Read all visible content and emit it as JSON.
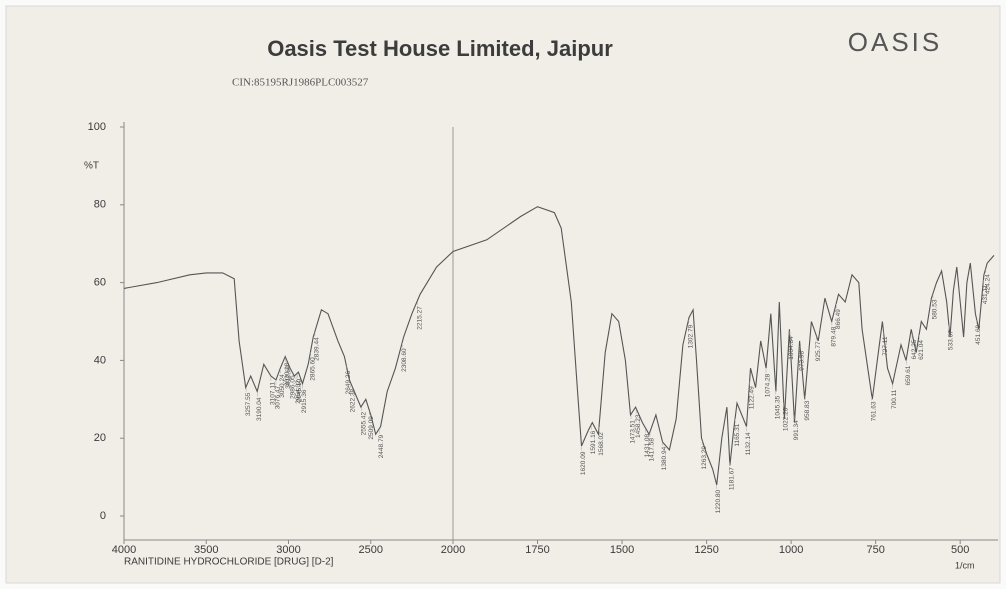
{
  "chart_data": {
    "type": "line",
    "title": "Oasis Test House Limited, Jaipur",
    "subtitle": "CIN:85195RJ1986PLC003527",
    "logo": "OASIS",
    "ylabel": "%T",
    "xlabel": "1/cm",
    "caption": "RANITIDINE HYDROCHLORIDE [DRUG]  [D-2]",
    "color": "#555555",
    "xlim": [
      4000,
      400
    ],
    "xbreak": 2000,
    "xticks": [
      4000,
      3500,
      3000,
      2500,
      2000,
      1750,
      1500,
      1250,
      1000,
      750,
      500
    ],
    "ylim": [
      0,
      100
    ],
    "yticks": [
      0,
      20,
      40,
      60,
      80,
      100
    ],
    "grid": false,
    "x": [
      4000,
      3800,
      3600,
      3500,
      3400,
      3330,
      3300,
      3260,
      3230,
      3190,
      3150,
      3107,
      3076,
      3050,
      3020,
      2990,
      2965,
      2940,
      2915,
      2880,
      2850,
      2800,
      2760,
      2700,
      2660,
      2630,
      2600,
      2560,
      2530,
      2500,
      2470,
      2440,
      2400,
      2350,
      2300,
      2250,
      2200,
      2100,
      2000,
      1900,
      1800,
      1750,
      1700,
      1680,
      1650,
      1630,
      1620,
      1600,
      1588,
      1570,
      1550,
      1530,
      1510,
      1490,
      1475,
      1460,
      1440,
      1420,
      1400,
      1380,
      1360,
      1340,
      1320,
      1302,
      1290,
      1280,
      1265,
      1250,
      1232,
      1220,
      1205,
      1190,
      1181,
      1170,
      1160,
      1132,
      1120,
      1105,
      1090,
      1074,
      1060,
      1045,
      1035,
      1020,
      1005,
      990,
      975,
      960,
      940,
      920,
      900,
      880,
      860,
      840,
      820,
      800,
      790,
      770,
      760,
      745,
      730,
      715,
      700,
      690,
      675,
      660,
      645,
      630,
      615,
      600,
      585,
      570,
      555,
      540,
      530,
      520,
      510,
      500,
      490,
      480,
      470,
      455,
      445,
      430,
      420,
      400
    ],
    "values": [
      58.5,
      60,
      62,
      62.5,
      62.5,
      61,
      45,
      33,
      36,
      32,
      39,
      36,
      35,
      38,
      41,
      38,
      36,
      37,
      34,
      39,
      46,
      53,
      52,
      45,
      41,
      35,
      32,
      28,
      30,
      26,
      21,
      23,
      32,
      38,
      46,
      52,
      57,
      64,
      68,
      71,
      77,
      79.5,
      78,
      74,
      55,
      30,
      18,
      22,
      24,
      21,
      42,
      52,
      50,
      40,
      26,
      28,
      24,
      21,
      26,
      19,
      17,
      25,
      44,
      51,
      53,
      40,
      20,
      16,
      12,
      8,
      20,
      28,
      13,
      22,
      29,
      23,
      38,
      33,
      45,
      38,
      52,
      32,
      55,
      25,
      48,
      24,
      45,
      30,
      50,
      45,
      56,
      50,
      57,
      55,
      62,
      60,
      48,
      36,
      30,
      40,
      50,
      38,
      34,
      38,
      44,
      40,
      48,
      42,
      50,
      48,
      56,
      60,
      63,
      55,
      46,
      58,
      64,
      55,
      46,
      60,
      65,
      52,
      48,
      62,
      65,
      67
    ],
    "annotations": [
      "3257.55",
      "3190.04",
      "3107.11",
      "3076.47",
      "3050.24",
      "3020.18",
      "3012.60",
      "2986.05",
      "2954.02",
      "2945.10",
      "2915.36",
      "2865.60",
      "2839.44",
      "2649.26",
      "2622.38",
      "2555.42",
      "2509.09",
      "2448.79",
      "2308.60",
      "2215.27",
      "1620.09",
      "1591.16",
      "1568.02",
      "1473.51",
      "1458.23",
      "1431.08",
      "1417.58",
      "1380.94",
      "1302.79",
      "1263.29",
      "1220.80",
      "1181.67",
      "1165.31",
      "1132.14",
      "1122.49",
      "1074.28",
      "1045.35",
      "1022.20",
      "1004.84",
      "991.34",
      "973.98",
      "958.83",
      "925.77",
      "879.48",
      "866.49",
      "761.63",
      "727.11",
      "700.11",
      "659.61",
      "642.25",
      "621.04",
      "580.53",
      "533.67",
      "451.69",
      "431.11",
      "424.24"
    ]
  }
}
